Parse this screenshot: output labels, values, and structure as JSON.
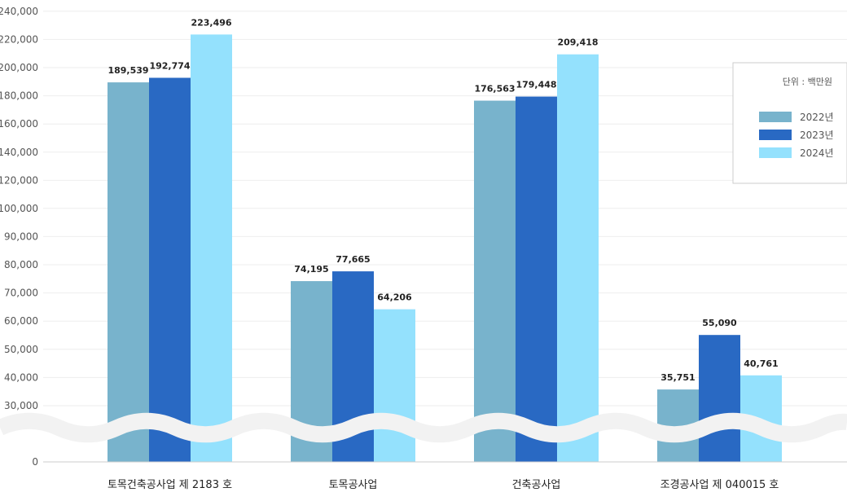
{
  "chart_data": {
    "type": "bar",
    "categories": [
      "토목건축공사업 제 2183 호",
      "토목공사업",
      "건축공사업",
      "조경공사업 제 040015 호"
    ],
    "series": [
      {
        "name": "2022년",
        "color": "#78b3cc",
        "values": [
          189539,
          74195,
          176563,
          35751
        ],
        "labels": [
          "189,539",
          "74,195",
          "176,563",
          "35,751"
        ]
      },
      {
        "name": "2023년",
        "color": "#2969c3",
        "values": [
          192774,
          77665,
          179448,
          55090
        ],
        "labels": [
          "192,774",
          "77,665",
          "179,448",
          "55,090"
        ]
      },
      {
        "name": "2024년",
        "color": "#94e1fd",
        "values": [
          223496,
          64206,
          209418,
          40761
        ],
        "labels": [
          "223,496",
          "64,206",
          "209,418",
          "40,761"
        ]
      }
    ],
    "y_ticks": [
      "0",
      "30,000",
      "40,000",
      "50,000",
      "60,000",
      "70,000",
      "80,000",
      "90,000",
      "100,000",
      "120,000",
      "140,000",
      "160,000",
      "180,000",
      "200,000",
      "220,000",
      "240,000"
    ],
    "y_tick_values": [
      0,
      30000,
      40000,
      50000,
      60000,
      70000,
      80000,
      90000,
      100000,
      120000,
      140000,
      160000,
      180000,
      200000,
      220000,
      240000
    ],
    "axis_break": true,
    "grid": true,
    "legend": {
      "title": "단위 : 백만원",
      "position": "right"
    }
  }
}
